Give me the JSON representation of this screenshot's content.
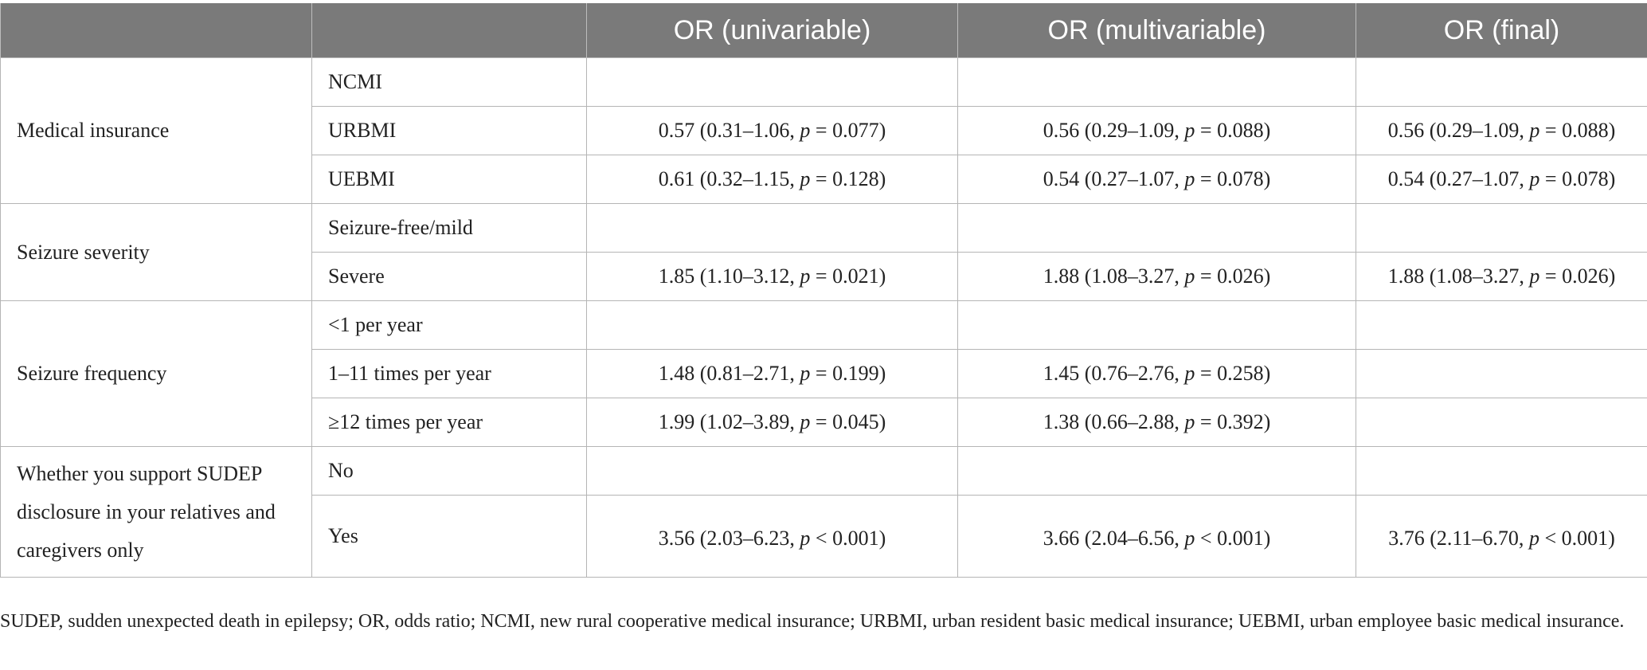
{
  "table": {
    "columns": [
      "",
      "",
      "OR (univariable)",
      "OR (multivariable)",
      "OR (final)"
    ],
    "groups": [
      {
        "variable": "Medical insurance",
        "rows": [
          {
            "level": "NCMI",
            "uni": "",
            "multi": "",
            "final": ""
          },
          {
            "level": "URBMI",
            "uni": "0.57 (0.31–1.06, p = 0.077)",
            "multi": "0.56 (0.29–1.09, p = 0.088)",
            "final": "0.56 (0.29–1.09, p = 0.088)"
          },
          {
            "level": "UEBMI",
            "uni": "0.61 (0.32–1.15, p = 0.128)",
            "multi": "0.54 (0.27–1.07, p = 0.078)",
            "final": "0.54 (0.27–1.07, p = 0.078)"
          }
        ]
      },
      {
        "variable": "Seizure severity",
        "rows": [
          {
            "level": "Seizure-free/mild",
            "uni": "",
            "multi": "",
            "final": ""
          },
          {
            "level": "Severe",
            "uni": "1.85 (1.10–3.12, p = 0.021)",
            "multi": "1.88 (1.08–3.27, p = 0.026)",
            "final": "1.88 (1.08–3.27, p = 0.026)"
          }
        ]
      },
      {
        "variable": "Seizure frequency",
        "rows": [
          {
            "level": "<1 per year",
            "uni": "",
            "multi": "",
            "final": ""
          },
          {
            "level": "1–11 times per year",
            "uni": "1.48 (0.81–2.71, p = 0.199)",
            "multi": "1.45 (0.76–2.76, p = 0.258)",
            "final": ""
          },
          {
            "level": "≥12 times per year",
            "uni": "1.99 (1.02–3.89, p = 0.045)",
            "multi": "1.38 (0.66–2.88, p = 0.392)",
            "final": ""
          }
        ]
      },
      {
        "variable": "Whether you support SUDEP disclosure in your relatives and caregivers only",
        "rows": [
          {
            "level": "No",
            "uni": "",
            "multi": "",
            "final": ""
          },
          {
            "level": "Yes",
            "uni": "3.56 (2.03–6.23, p < 0.001)",
            "multi": "3.66 (2.04–6.56, p < 0.001)",
            "final": "3.76 (2.11–6.70, p < 0.001)"
          }
        ]
      }
    ]
  },
  "footnote": "SUDEP, sudden unexpected death in epilepsy; OR, odds ratio; NCMI, new rural cooperative medical insurance; URBMI, urban resident basic medical insurance; UEBMI, urban employee basic medical insurance.",
  "colors": {
    "header_bg": "#7a7a7a",
    "header_text": "#ffffff",
    "grid": "#b5b5b5"
  }
}
